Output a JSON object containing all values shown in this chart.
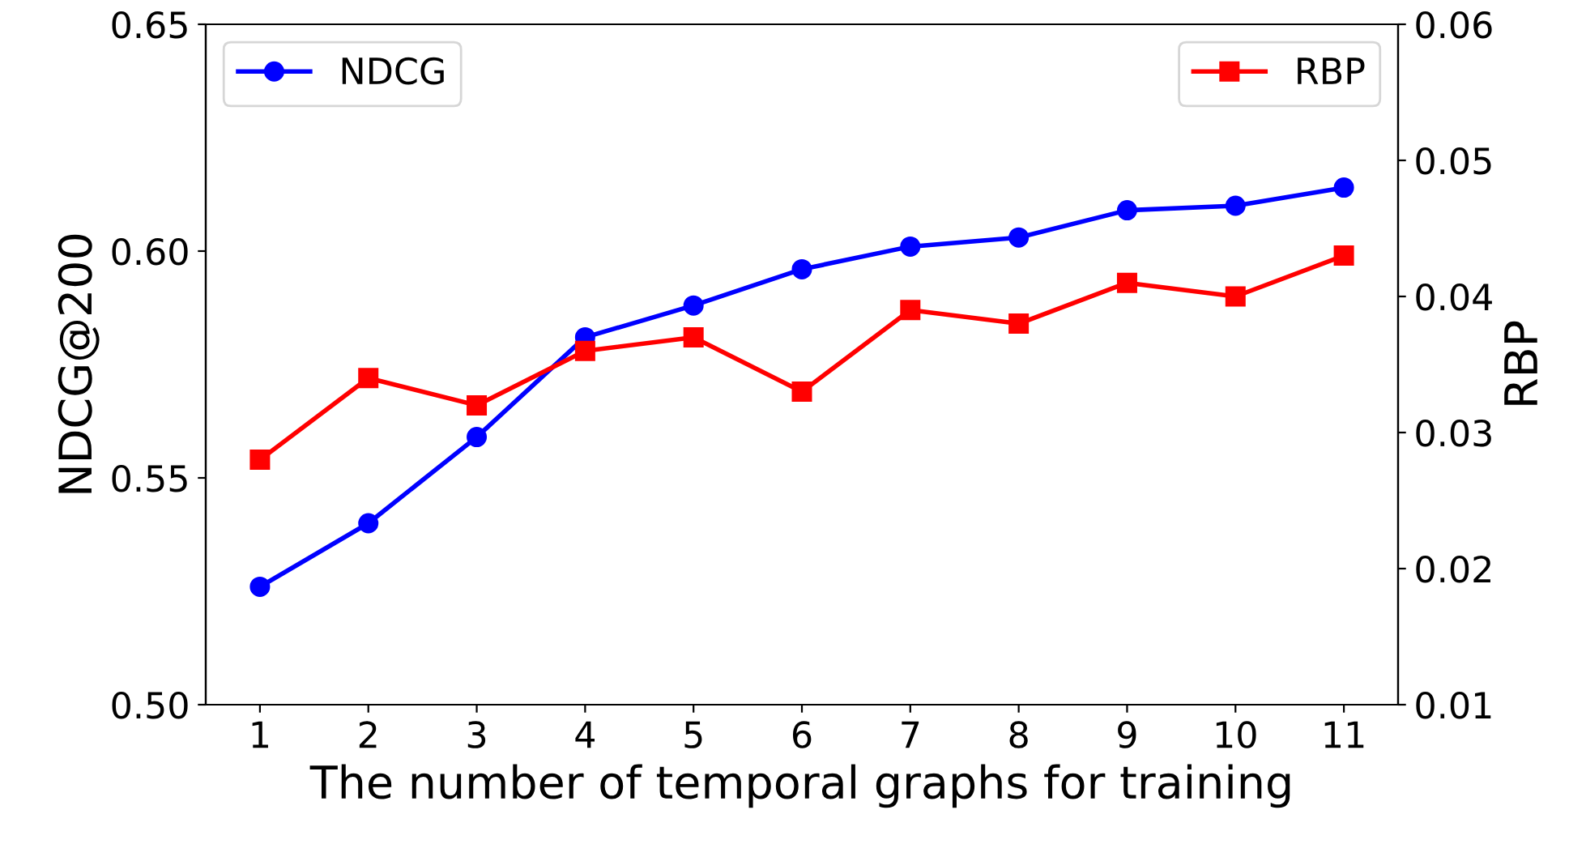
{
  "chart_data": {
    "type": "line",
    "xlabel": "The number of temporal graphs for training",
    "ylabel": "NDCG@200",
    "y2label": "RBP",
    "x": [
      1,
      2,
      3,
      4,
      5,
      6,
      7,
      8,
      9,
      10,
      11
    ],
    "xlim": [
      0.5,
      11.5
    ],
    "xticks": [
      1,
      2,
      3,
      4,
      5,
      6,
      7,
      8,
      9,
      10,
      11
    ],
    "ylim": [
      0.5,
      0.65
    ],
    "yticks": [
      {
        "value": 0.5,
        "label": "0.50"
      },
      {
        "value": 0.55,
        "label": "0.55"
      },
      {
        "value": 0.6,
        "label": "0.60"
      },
      {
        "value": 0.65,
        "label": "0.65"
      }
    ],
    "y2lim": [
      0.01,
      0.06
    ],
    "y2ticks": [
      0.01,
      0.02,
      0.03,
      0.04,
      0.05,
      0.06
    ],
    "grid": false,
    "legend": "top",
    "series": [
      {
        "name": "NDCG",
        "color": "#0000ff",
        "marker": "circle",
        "values": [
          0.526,
          0.54,
          0.559,
          0.581,
          0.588,
          0.596,
          0.601,
          0.603,
          0.609,
          0.61,
          0.614
        ]
      },
      {
        "name": "RBP",
        "color": "#ff0000",
        "marker": "square",
        "axis": "y2",
        "values": [
          0.028,
          0.034,
          0.032,
          0.036,
          0.037,
          0.033,
          0.039,
          0.038,
          0.041,
          0.04,
          0.043
        ]
      }
    ]
  }
}
